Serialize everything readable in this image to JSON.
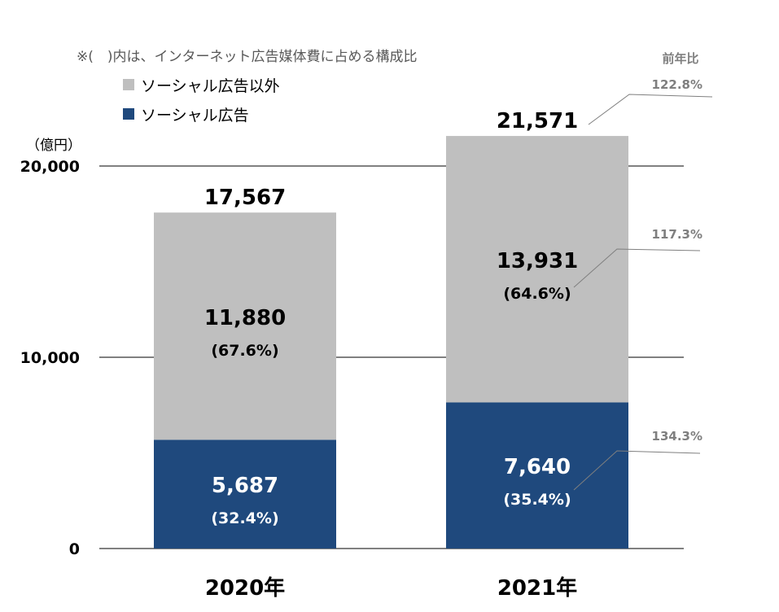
{
  "chart_data": {
    "type": "bar",
    "stacked": true,
    "unit_label": "（億円）",
    "note": "※(　)内は、インターネット広告媒体費に占める構成比",
    "categories": [
      "2020年",
      "2021年"
    ],
    "series": [
      {
        "name": "ソーシャル広告",
        "color": "#1f497d",
        "values": [
          5687,
          7640
        ],
        "value_labels": [
          "5,687",
          "7,640"
        ],
        "share_labels": [
          "(32.4%)",
          "(35.4%)"
        ]
      },
      {
        "name": "ソーシャル広告以外",
        "color": "#bfbfbf",
        "values": [
          11880,
          13931
        ],
        "value_labels": [
          "11,880",
          "13,931"
        ],
        "share_labels": [
          "(67.6%)",
          "(64.6%)"
        ]
      }
    ],
    "totals": [
      17567,
      21571
    ],
    "total_labels": [
      "17,567",
      "21,571"
    ],
    "ylim": [
      0,
      20000
    ],
    "y_ticks": [
      0,
      10000,
      20000
    ],
    "y_tick_labels": [
      "0",
      "10,000",
      "20,000"
    ],
    "grid": true,
    "legend_position": "top-left",
    "yoy": {
      "title": "前年比",
      "total": "122.8%",
      "other": "117.3%",
      "social": "134.3%"
    }
  }
}
